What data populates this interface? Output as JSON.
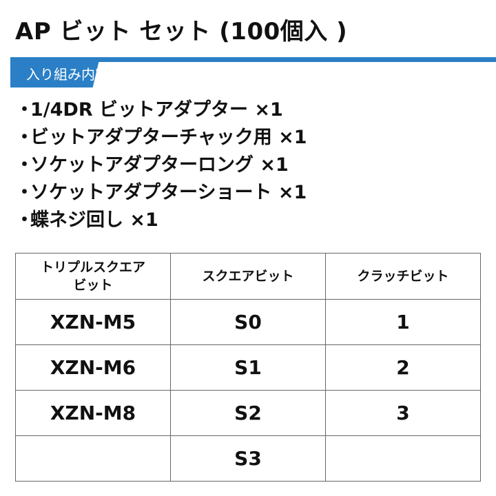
{
  "title": "AP ビット セット (100個入 )",
  "section_label": "入り組み内容",
  "accent_color": "#2a7fc6",
  "bullet": "・",
  "items": [
    "1/4DR ビットアダプター ×1",
    "ビットアダプターチャック用 ×1",
    "ソケットアダプターロング ×1",
    "ソケットアダプターショート ×1",
    "蝶ネジ回し ×1"
  ],
  "table": {
    "headers": [
      "トリプルスクエア\nビット",
      "スクエアビット",
      "クラッチビット"
    ],
    "rows": [
      [
        "XZN-M5",
        "S0",
        "1"
      ],
      [
        "XZN-M6",
        "S1",
        "2"
      ],
      [
        "XZN-M8",
        "S2",
        "3"
      ],
      [
        "",
        "S3",
        ""
      ]
    ]
  }
}
